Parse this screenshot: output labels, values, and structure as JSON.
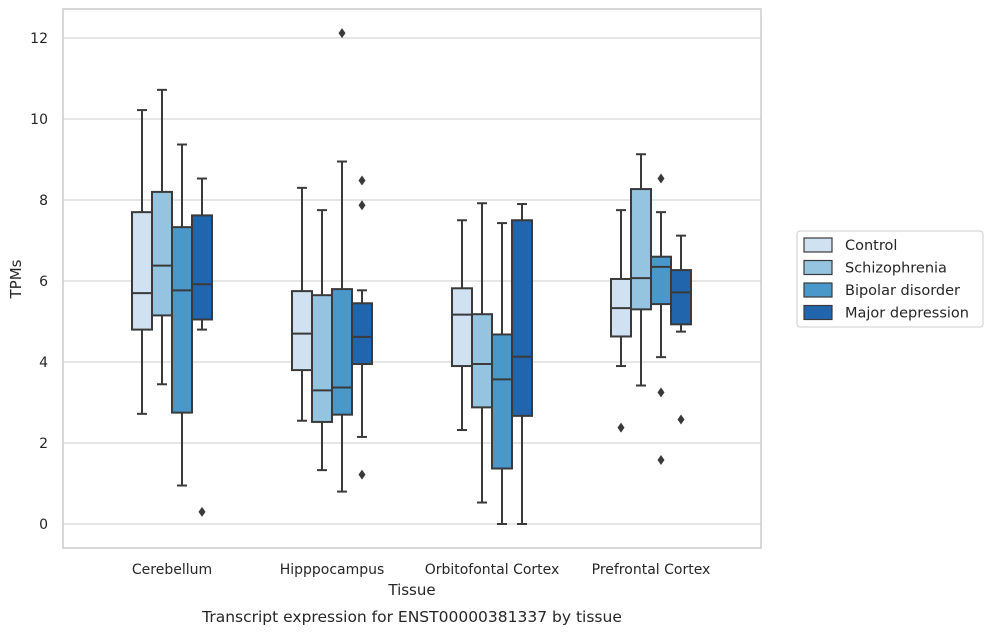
{
  "chart_data": {
    "type": "box",
    "xlabel": "Tissue",
    "ylabel": "TPMs",
    "caption": "Transcript expression for ENST00000381337 by tissue",
    "ylim": [
      -0.6,
      12.7
    ],
    "yticks": [
      0,
      2,
      4,
      6,
      8,
      10,
      12
    ],
    "grid": "horizontal",
    "legend_position": "right",
    "categories": [
      "Cerebellum",
      "Hipppocampus",
      "Orbitofontal Cortex",
      "Prefrontal Cortex"
    ],
    "series": [
      {
        "name": "Control",
        "color": "#d0e1f2",
        "boxes": [
          {
            "whislo": 2.72,
            "q1": 4.8,
            "median": 5.7,
            "q3": 7.7,
            "whishi": 10.22,
            "fliers": []
          },
          {
            "whislo": 2.55,
            "q1": 3.8,
            "median": 4.7,
            "q3": 5.75,
            "whishi": 8.3,
            "fliers": []
          },
          {
            "whislo": 2.32,
            "q1": 3.9,
            "median": 5.17,
            "q3": 5.82,
            "whishi": 7.5,
            "fliers": []
          },
          {
            "whislo": 3.9,
            "q1": 4.63,
            "median": 5.33,
            "q3": 6.05,
            "whishi": 7.75,
            "fliers": [
              2.38
            ]
          }
        ]
      },
      {
        "name": "Schizophrenia",
        "color": "#94c4df",
        "boxes": [
          {
            "whislo": 3.45,
            "q1": 5.15,
            "median": 6.38,
            "q3": 8.2,
            "whishi": 10.72,
            "fliers": []
          },
          {
            "whislo": 1.33,
            "q1": 2.52,
            "median": 3.3,
            "q3": 5.65,
            "whishi": 7.75,
            "fliers": []
          },
          {
            "whislo": 0.53,
            "q1": 2.88,
            "median": 3.95,
            "q3": 5.18,
            "whishi": 7.92,
            "fliers": []
          },
          {
            "whislo": 3.42,
            "q1": 5.3,
            "median": 6.07,
            "q3": 8.27,
            "whishi": 9.13,
            "fliers": []
          }
        ]
      },
      {
        "name": "Bipolar disorder",
        "color": "#4a98c9",
        "boxes": [
          {
            "whislo": 0.95,
            "q1": 2.75,
            "median": 5.77,
            "q3": 7.33,
            "whishi": 9.37,
            "fliers": []
          },
          {
            "whislo": 0.8,
            "q1": 2.7,
            "median": 3.37,
            "q3": 5.8,
            "whishi": 8.95,
            "fliers": [
              12.12
            ]
          },
          {
            "whislo": 0.0,
            "q1": 1.37,
            "median": 3.57,
            "q3": 4.68,
            "whishi": 7.43,
            "fliers": []
          },
          {
            "whislo": 4.12,
            "q1": 5.43,
            "median": 6.35,
            "q3": 6.6,
            "whishi": 7.7,
            "fliers": [
              8.53,
              3.25,
              1.58
            ]
          }
        ]
      },
      {
        "name": "Major depression",
        "color": "#2166ac",
        "boxes": [
          {
            "whislo": 4.8,
            "q1": 5.05,
            "median": 5.92,
            "q3": 7.62,
            "whishi": 8.53,
            "fliers": [
              0.3
            ]
          },
          {
            "whislo": 2.15,
            "q1": 3.95,
            "median": 4.62,
            "q3": 5.45,
            "whishi": 5.77,
            "fliers": [
              8.48,
              7.87,
              1.22
            ]
          },
          {
            "whislo": 0.0,
            "q1": 2.67,
            "median": 4.13,
            "q3": 7.5,
            "whishi": 7.9,
            "fliers": []
          },
          {
            "whislo": 4.75,
            "q1": 4.93,
            "median": 5.72,
            "q3": 6.27,
            "whishi": 7.12,
            "fliers": [
              2.58
            ]
          }
        ]
      }
    ]
  }
}
